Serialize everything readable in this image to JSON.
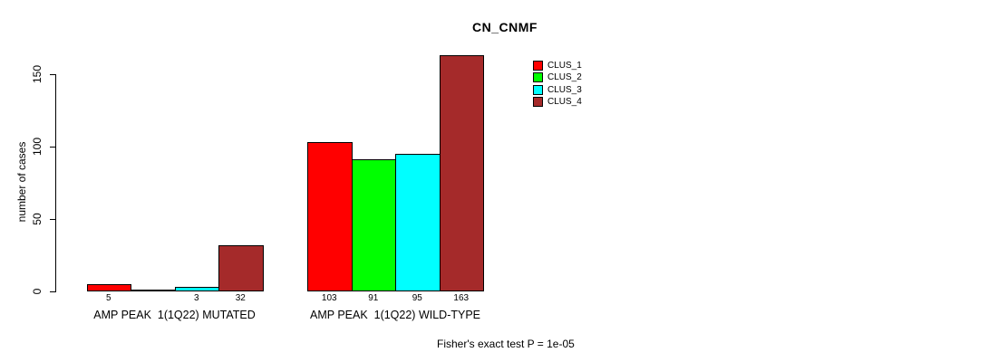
{
  "chart_data": {
    "type": "bar",
    "title": "CN_CNMF",
    "ylabel": "number of cases",
    "xlabel": "",
    "ylim": [
      0,
      165
    ],
    "yticks": [
      0,
      50,
      100,
      150
    ],
    "grid": false,
    "legend_position": "top-right",
    "categories": [
      "AMP PEAK  1(1Q22) MUTATED",
      "AMP PEAK  1(1Q22) WILD-TYPE"
    ],
    "series": [
      {
        "name": "CLUS_1",
        "color": "#ff0000",
        "values": [
          5,
          103
        ]
      },
      {
        "name": "CLUS_2",
        "color": "#00ff00",
        "values": [
          0,
          91
        ]
      },
      {
        "name": "CLUS_3",
        "color": "#00ffff",
        "values": [
          3,
          95
        ]
      },
      {
        "name": "CLUS_4",
        "color": "#a52a2a",
        "values": [
          32,
          163
        ]
      }
    ],
    "bar_count_labels": [
      [
        "5",
        "",
        "3",
        "32"
      ],
      [
        "103",
        "91",
        "95",
        "163"
      ]
    ],
    "annotation": "Fisher's exact test P = 1e-05"
  }
}
